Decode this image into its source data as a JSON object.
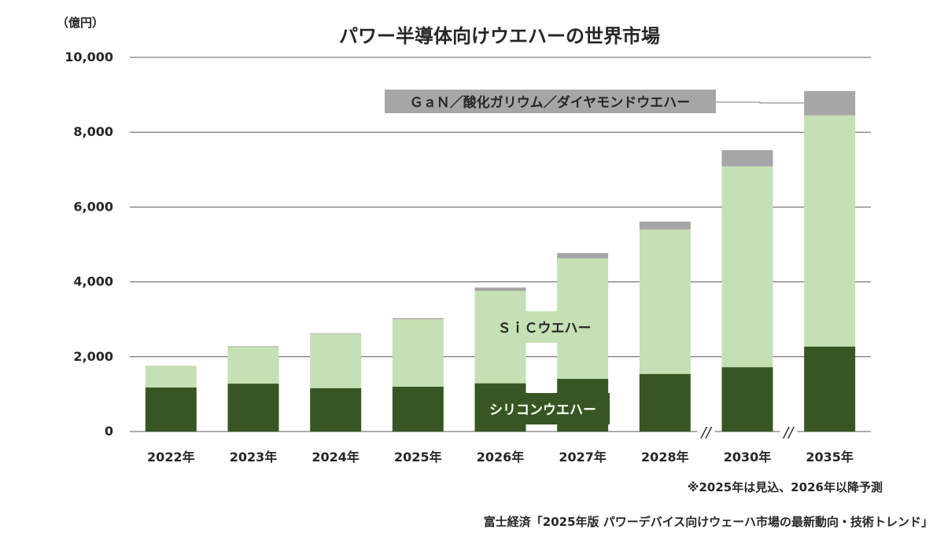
{
  "chart_data": {
    "type": "bar",
    "stacked": true,
    "title": "パワー半導体向けウエハーの世界市場",
    "unit_label": "（億円）",
    "categories": [
      "2022年",
      "2023年",
      "2024年",
      "2025年",
      "2026年",
      "2027年",
      "2028年",
      "2030年",
      "2035年"
    ],
    "series": [
      {
        "name": "シリコンウエハー",
        "color": "#375623",
        "values": [
          1180,
          1280,
          1160,
          1200,
          1290,
          1410,
          1540,
          1720,
          2270
        ]
      },
      {
        "name": "ＳｉＣウエハー",
        "color": "#c5e0b4",
        "values": [
          580,
          980,
          1440,
          1800,
          2470,
          3220,
          3860,
          5370,
          6180
        ]
      },
      {
        "name": "ＧａＮ／酸化ガリウム／ダイヤモンドウエハー",
        "color": "#a6a6a6",
        "values": [
          0,
          20,
          20,
          30,
          90,
          140,
          210,
          430,
          650
        ]
      }
    ],
    "yticks": [
      "0",
      "2,000",
      "4,000",
      "6,000",
      "8,000",
      "10,000"
    ],
    "ylim": [
      0,
      10000
    ],
    "grid": true,
    "axis_break_marks": [
      "//",
      "//"
    ],
    "note": "※2025年は見込、2026年以降予測",
    "source": "富士経済「2025年版 パワーデバイス向けウェーハ市場の最新動向・技術トレンド」"
  }
}
